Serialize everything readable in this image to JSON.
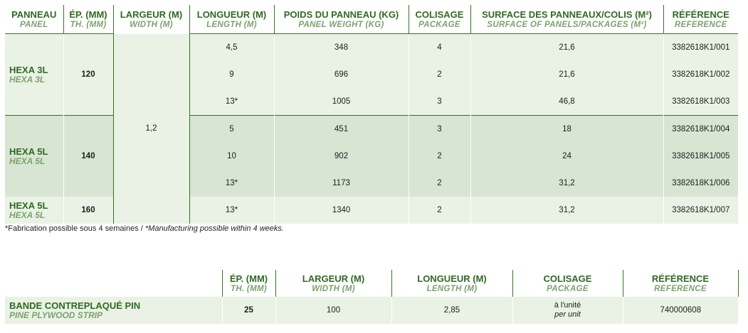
{
  "table1": {
    "headers": [
      {
        "main": "PANNEAU",
        "sub": "PANEL"
      },
      {
        "main": "ÉP. (MM)",
        "sub": "TH. (MM)"
      },
      {
        "main": "LARGEUR (M)",
        "sub": "WIDTH (M)"
      },
      {
        "main": "LONGUEUR (M)",
        "sub": "LENGTH (M)"
      },
      {
        "main": "POIDS DU PANNEAU (KG)",
        "sub": "PANEL WEIGHT (KG)"
      },
      {
        "main": "COLISAGE",
        "sub": "PACKAGE"
      },
      {
        "main": "SURFACE DES PANNEAUX/COLIS (M²)",
        "sub": "SURFACE OF PANELS/PACKAGES (M²)"
      },
      {
        "main": "RÉFÉRENCE",
        "sub": "REFERENCE"
      }
    ],
    "width_value": "1,2",
    "groups": [
      {
        "panel": "HEXA 3L",
        "panel_sub": "HEXA 3L",
        "thickness": "120",
        "rows": [
          {
            "length": "4,5",
            "weight": "348",
            "package": "4",
            "surface": "21,6",
            "reference": "3382618K1/001"
          },
          {
            "length": "9",
            "weight": "696",
            "package": "2",
            "surface": "21,6",
            "reference": "3382618K1/002"
          },
          {
            "length": "13*",
            "weight": "1005",
            "package": "3",
            "surface": "46,8",
            "reference": "3382618K1/003"
          }
        ]
      },
      {
        "panel": "HEXA 5L",
        "panel_sub": "HEXA 5L",
        "thickness": "140",
        "rows": [
          {
            "length": "5",
            "weight": "451",
            "package": "3",
            "surface": "18",
            "reference": "3382618K1/004"
          },
          {
            "length": "10",
            "weight": "902",
            "package": "2",
            "surface": "24",
            "reference": "3382618K1/005"
          },
          {
            "length": "13*",
            "weight": "1173",
            "package": "2",
            "surface": "31,2",
            "reference": "3382618K1/006"
          }
        ]
      },
      {
        "panel": "HEXA 5L",
        "panel_sub": "HEXA 5L",
        "thickness": "160",
        "rows": [
          {
            "length": "13*",
            "weight": "1340",
            "package": "2",
            "surface": "31,2",
            "reference": "3382618K1/007"
          }
        ]
      }
    ]
  },
  "footnote": {
    "fr": "*Fabrication possible sous 4 semaines / ",
    "en": "*Manufacturing possible within 4 weeks."
  },
  "table2": {
    "headers": [
      {
        "main": "ÉP. (MM)",
        "sub": "TH. (MM)"
      },
      {
        "main": "LARGEUR (M)",
        "sub": "WIDTH (M)"
      },
      {
        "main": "LONGUEUR (M)",
        "sub": "LENGTH (M)"
      },
      {
        "main": "COLISAGE",
        "sub": "PACKAGE"
      },
      {
        "main": "RÉFÉRENCE",
        "sub": "REFERENCE"
      }
    ],
    "row": {
      "name": "BANDE CONTREPLAQUÉ PIN",
      "name_sub": "PINE PLYWOOD STRIP",
      "thickness": "25",
      "width": "100",
      "length": "2,85",
      "package": "à l'unité",
      "package_sub": "per unit",
      "reference": "740000608"
    }
  },
  "colors": {
    "accent": "#2f6a22",
    "accent_light": "#7aa36b",
    "row_light": "#e9f2e5",
    "row_dark": "#d7e5d2"
  }
}
